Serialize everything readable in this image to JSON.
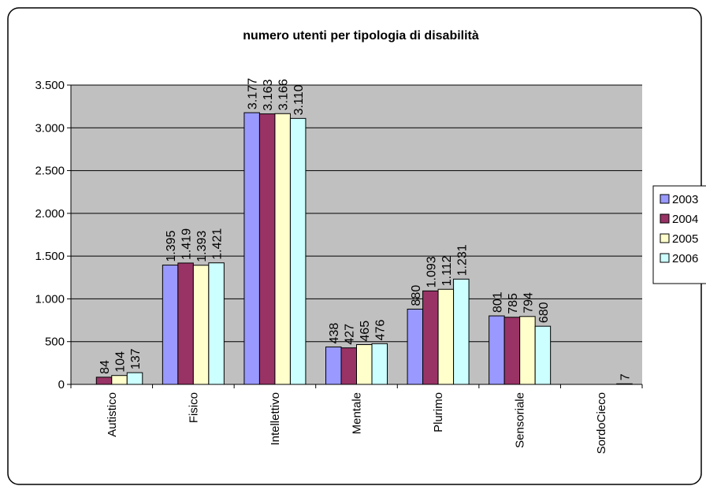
{
  "chart_data": {
    "type": "bar",
    "title": "numero utenti per tipologia di disabilità",
    "xlabel": "",
    "ylabel": "",
    "categories": [
      "Autistico",
      "Fisico",
      "Intellettivo",
      "Mentale",
      "Plurimo",
      "Sensoriale",
      "SordoCieco"
    ],
    "series": [
      {
        "name": "2003",
        "color": "#9999FF",
        "values": [
          null,
          1395,
          3177,
          438,
          880,
          801,
          null
        ],
        "labels": [
          "",
          "1.395",
          "3.177",
          "438",
          "880",
          "801",
          ""
        ]
      },
      {
        "name": "2004",
        "color": "#993366",
        "values": [
          84,
          1419,
          3163,
          427,
          1093,
          785,
          null
        ],
        "labels": [
          "84",
          "1.419",
          "3.163",
          "427",
          "1.093",
          "785",
          ""
        ]
      },
      {
        "name": "2005",
        "color": "#FFFFCC",
        "values": [
          104,
          1393,
          3166,
          465,
          1112,
          794,
          null
        ],
        "labels": [
          "104",
          "1.393",
          "3.166",
          "465",
          "1.112",
          "794",
          ""
        ]
      },
      {
        "name": "2006",
        "color": "#CCFFFF",
        "values": [
          137,
          1421,
          3110,
          476,
          1231,
          680,
          7
        ],
        "labels": [
          "137",
          "1.421",
          "3.110",
          "476",
          "1.231",
          "680",
          "7"
        ]
      }
    ],
    "ylim": [
      0,
      3500
    ],
    "yticks": [
      0,
      500,
      1000,
      1500,
      2000,
      2500,
      3000,
      3500
    ],
    "ytick_labels": [
      "0",
      "500",
      "1.000",
      "1.500",
      "2.000",
      "2.500",
      "3.000",
      "3.500"
    ],
    "grid": true,
    "plot_background": "#C0C0C0",
    "legend_position": "right"
  }
}
